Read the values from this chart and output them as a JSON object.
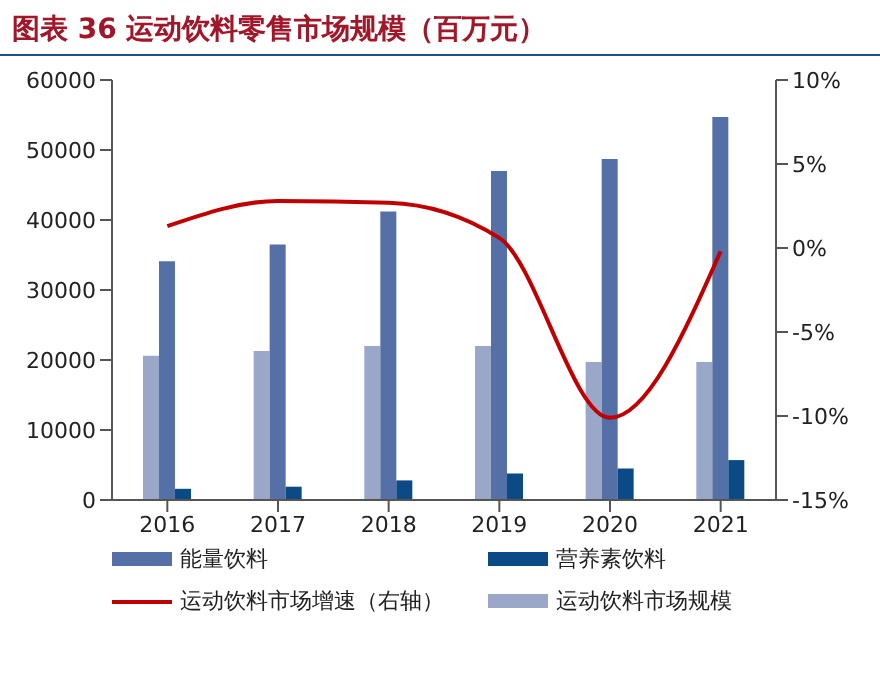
{
  "chart_data": {
    "type": "bar",
    "title": "图表 36 运动饮料零售市场规模（百万元）",
    "categories": [
      "2016",
      "2017",
      "2018",
      "2019",
      "2020",
      "2021"
    ],
    "series": [
      {
        "name": "运动饮料市场规模",
        "color": "#9aa7c9",
        "values": [
          20600,
          21300,
          22000,
          22000,
          19700,
          19700
        ]
      },
      {
        "name": "能量饮料",
        "color": "#5470a6",
        "values": [
          34100,
          36500,
          41200,
          47000,
          48700,
          54700
        ]
      },
      {
        "name": "营养素饮料",
        "color": "#0b4a84",
        "values": [
          1600,
          1900,
          2800,
          3800,
          4500,
          5700
        ]
      },
      {
        "name": "运动饮料市场增速（右轴）",
        "type": "line",
        "axis": "y2",
        "color": "#c00000",
        "marker": "none",
        "values": [
          1.3,
          2.8,
          2.7,
          0.6,
          -10.1,
          -0.2
        ]
      }
    ],
    "ylim": [
      0,
      60000
    ],
    "yticks": [
      0,
      10000,
      20000,
      30000,
      40000,
      50000,
      60000
    ],
    "y2lim": [
      -15,
      10
    ],
    "y2ticks": [
      {
        "value": -15,
        "label": "-15%"
      },
      {
        "value": -10,
        "label": "-10%"
      },
      {
        "value": -5,
        "label": "-5%"
      },
      {
        "value": 0,
        "label": "0%"
      },
      {
        "value": 5,
        "label": "5%"
      },
      {
        "value": 10,
        "label": "10%"
      }
    ],
    "grid": false,
    "legend": "bottom"
  }
}
